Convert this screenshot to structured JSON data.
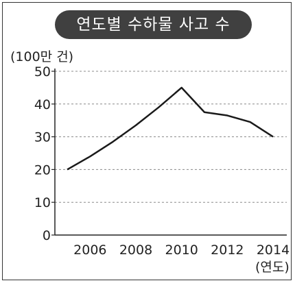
{
  "chart_data": {
    "type": "line",
    "title": "연도별 수하물 사고 수",
    "ylabel": "(100만 건)",
    "xlabel": "(연도)",
    "ylim": [
      0,
      50
    ],
    "xlim": [
      2005,
      2014
    ],
    "yticks": [
      0,
      10,
      20,
      30,
      40,
      50
    ],
    "xticks": [
      2006,
      2008,
      2010,
      2012,
      2014
    ],
    "grid": "horizontal dashed",
    "series": [
      {
        "x": [
          2005,
          2006,
          2007,
          2008,
          2009,
          2010,
          2011,
          2012,
          2013,
          2014
        ],
        "values": [
          20,
          24,
          28.5,
          33.5,
          39,
          45,
          37.5,
          36.5,
          34.5,
          30
        ]
      }
    ]
  }
}
